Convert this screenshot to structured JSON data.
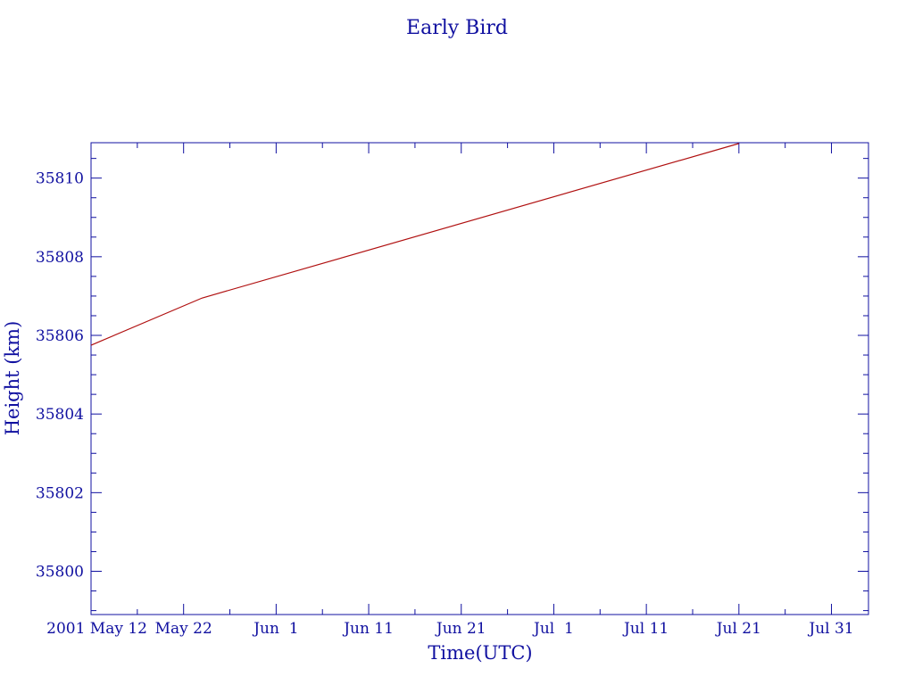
{
  "chart_data": {
    "type": "line",
    "title": "Early Bird",
    "xlabel": "Time(UTC)",
    "ylabel": "Height (km)",
    "x_tick_labels": [
      {
        "date": "2001-05-12",
        "label": "2001 May 12"
      },
      {
        "date": "2001-05-22",
        "label": "May 22"
      },
      {
        "date": "2001-06-01",
        "label": "Jun  1"
      },
      {
        "date": "2001-06-11",
        "label": "Jun 11"
      },
      {
        "date": "2001-06-21",
        "label": "Jun 21"
      },
      {
        "date": "2001-07-01",
        "label": "Jul  1"
      },
      {
        "date": "2001-07-11",
        "label": "Jul 11"
      },
      {
        "date": "2001-07-21",
        "label": "Jul 21"
      },
      {
        "date": "2001-07-31",
        "label": "Jul 31"
      }
    ],
    "y_ticks": [
      35800,
      35802,
      35804,
      35806,
      35808,
      35810
    ],
    "xlim": [
      "2001-05-12",
      "2001-08-04"
    ],
    "ylim": [
      35798.9,
      35810.9
    ],
    "grid": false,
    "series": [
      {
        "x": [
          "2001-05-12",
          "2001-05-24",
          "2001-07-21"
        ],
        "y": [
          35805.75,
          35806.95,
          35810.88
        ]
      }
    ]
  },
  "colors": {
    "axis": "#1010a0",
    "text": "#1010a0",
    "line": "#b01010",
    "background": "#ffffff"
  }
}
